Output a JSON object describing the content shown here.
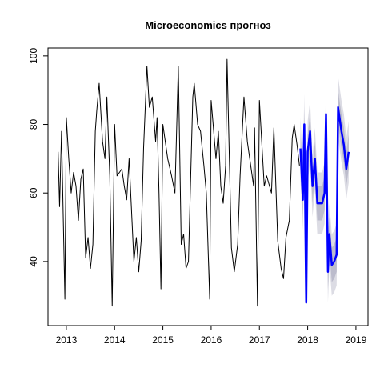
{
  "chart_data": {
    "type": "line",
    "title": "Microeconomics прогноз",
    "xlim": [
      2012.62,
      2019.25
    ],
    "xticks": [
      2013,
      2014,
      2015,
      2016,
      2017,
      2018,
      2019
    ],
    "ylim": [
      21.3,
      102.3
    ],
    "yticks": [
      40,
      60,
      80,
      100
    ],
    "series": [
      {
        "color": "#000000",
        "width": 1,
        "x": [
          2012.83,
          2012.86,
          2012.9,
          2012.97,
          2013.0,
          2013.05,
          2013.1,
          2013.15,
          2013.2,
          2013.25,
          2013.3,
          2013.35,
          2013.4,
          2013.45,
          2013.5,
          2013.55,
          2013.6,
          2013.63,
          2013.68,
          2013.75,
          2013.8,
          2013.84,
          2013.9,
          2013.95,
          2014.0,
          2014.05,
          2014.1,
          2014.15,
          2014.2,
          2014.25,
          2014.3,
          2014.4,
          2014.45,
          2014.5,
          2014.55,
          2014.6,
          2014.67,
          2014.72,
          2014.78,
          2014.85,
          2014.88,
          2014.92,
          2014.96,
          2015.0,
          2015.1,
          2015.18,
          2015.25,
          2015.32,
          2015.38,
          2015.43,
          2015.48,
          2015.53,
          2015.62,
          2015.65,
          2015.72,
          2015.78,
          2015.85,
          2015.9,
          2015.97,
          2016.0,
          2016.1,
          2016.15,
          2016.2,
          2016.25,
          2016.3,
          2016.33,
          2016.42,
          2016.48,
          2016.55,
          2016.6,
          2016.68,
          2016.75,
          2016.8,
          2016.88,
          2016.9,
          2016.96,
          2017.0,
          2017.1,
          2017.15,
          2017.25,
          2017.3,
          2017.38,
          2017.45,
          2017.5,
          2017.55,
          2017.62,
          2017.68,
          2017.72,
          2017.78,
          2017.83
        ],
        "values": [
          72,
          56,
          78,
          29,
          82,
          70,
          60,
          66,
          62,
          52,
          64,
          67,
          41,
          47,
          38,
          45,
          78,
          84,
          92,
          75,
          70,
          88,
          65,
          27,
          80,
          65,
          66,
          67,
          62,
          58,
          70,
          40,
          47,
          37,
          46,
          73,
          97,
          85,
          88,
          75,
          82,
          60,
          32,
          80,
          70,
          65,
          60,
          97,
          45,
          48,
          38,
          40,
          88,
          92,
          80,
          78,
          68,
          60,
          29,
          87,
          70,
          78,
          62,
          57,
          68,
          99,
          44,
          37,
          45,
          65,
          88,
          75,
          70,
          62,
          79,
          27,
          87,
          62,
          65,
          60,
          79,
          46,
          38,
          35,
          47,
          52,
          76,
          80,
          74,
          68
        ]
      },
      {
        "color": "#0000ff",
        "width": 2.5,
        "x": [
          2017.85,
          2017.9,
          2017.93,
          2017.97,
          2018.0,
          2018.05,
          2018.1,
          2018.15,
          2018.2,
          2018.3,
          2018.35,
          2018.38,
          2018.42,
          2018.45,
          2018.5,
          2018.55,
          2018.6,
          2018.63,
          2018.7,
          2018.75,
          2018.8,
          2018.85
        ],
        "values": [
          73,
          58,
          80,
          28,
          72,
          78,
          62,
          70,
          57,
          57,
          60,
          83,
          37,
          48,
          39,
          40,
          42,
          85,
          78,
          74,
          67,
          72
        ],
        "bands": [
          {
            "color": "#dcdce4",
            "lower": [
              64,
              49,
              71,
              24,
              63,
              69,
              53,
              61,
              48,
              48,
              51,
              74,
              28,
              39,
              30,
              31,
              33,
              76,
              69,
              65,
              58,
              63
            ],
            "upper": [
              82,
              67,
              89,
              37,
              81,
              87,
              71,
              79,
              66,
              66,
              69,
              92,
              46,
              57,
              48,
              49,
              51,
              94,
              87,
              83,
              76,
              81
            ]
          },
          {
            "color": "#bcbccc",
            "lower": [
              68,
              53,
              75,
              25,
              67,
              73,
              57,
              65,
              52,
              52,
              55,
              78,
              32,
              43,
              34,
              35,
              37,
              80,
              73,
              69,
              62,
              67
            ],
            "upper": [
              78,
              63,
              85,
              33,
              77,
              83,
              67,
              75,
              62,
              62,
              65,
              88,
              42,
              53,
              44,
              45,
              47,
              90,
              83,
              79,
              72,
              77
            ]
          }
        ]
      }
    ]
  }
}
